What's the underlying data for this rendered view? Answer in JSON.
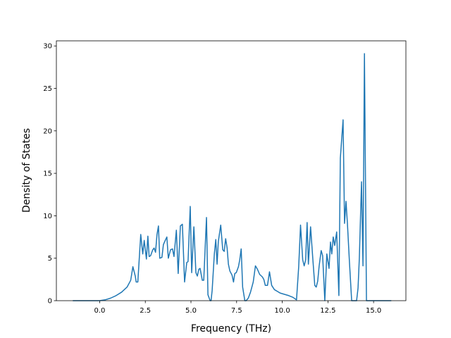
{
  "chart_data": {
    "type": "line",
    "x_label": "Frequency (THz)",
    "y_label": "Density of States",
    "x": [
      -1.47,
      0,
      0.3,
      0.6,
      0.9,
      1.2,
      1.5,
      1.7,
      1.82,
      1.95,
      2.0,
      2.09,
      2.25,
      2.36,
      2.44,
      2.56,
      2.64,
      2.71,
      2.79,
      2.91,
      2.98,
      3.06,
      3.14,
      3.22,
      3.29,
      3.41,
      3.49,
      3.57,
      3.68,
      3.76,
      3.88,
      3.99,
      4.07,
      4.2,
      4.3,
      4.42,
      4.53,
      4.65,
      4.77,
      4.84,
      4.96,
      5.04,
      5.16,
      5.27,
      5.35,
      5.43,
      5.5,
      5.62,
      5.7,
      5.85,
      5.93,
      6.05,
      6.1,
      6.16,
      6.28,
      6.36,
      6.43,
      6.5,
      6.63,
      6.74,
      6.82,
      6.9,
      6.98,
      7.05,
      7.13,
      7.25,
      7.33,
      7.4,
      7.48,
      7.6,
      7.67,
      7.75,
      7.83,
      7.95,
      8.02,
      8.14,
      8.26,
      8.41,
      8.53,
      8.64,
      8.76,
      8.91,
      8.99,
      9.07,
      9.19,
      9.3,
      9.42,
      9.57,
      9.73,
      9.88,
      10.04,
      10.35,
      10.58,
      10.78,
      10.9,
      11.0,
      11.12,
      11.2,
      11.28,
      11.36,
      11.43,
      11.55,
      11.67,
      11.78,
      11.86,
      11.94,
      12.02,
      12.13,
      12.21,
      12.33,
      12.44,
      12.56,
      12.64,
      12.71,
      12.79,
      12.87,
      12.98,
      13.1,
      13.18,
      13.33,
      13.41,
      13.49,
      13.57,
      13.68,
      13.8,
      14.07,
      14.15,
      14.22,
      14.34,
      14.42,
      14.5,
      14.61,
      15.97
    ],
    "series": [
      {
        "color": "#1f77b4",
        "values": [
          0,
          0,
          0.1,
          0.3,
          0.6,
          1.0,
          1.6,
          2.4,
          4.0,
          2.9,
          2.2,
          2.2,
          7.8,
          5.5,
          7.1,
          4.9,
          7.6,
          5.2,
          5.3,
          6.0,
          6.2,
          5.7,
          7.8,
          8.8,
          5.0,
          5.1,
          6.6,
          7.0,
          7.5,
          5.0,
          6.0,
          6.1,
          5.2,
          8.3,
          3.2,
          8.8,
          9.0,
          2.2,
          4.5,
          4.6,
          11.1,
          3.3,
          8.7,
          3.3,
          2.9,
          3.7,
          3.8,
          2.4,
          2.4,
          9.8,
          0.7,
          0,
          0,
          1.2,
          5.5,
          7.2,
          4.3,
          7.0,
          8.9,
          6.0,
          5.8,
          7.3,
          6.2,
          4.3,
          3.5,
          3.0,
          2.2,
          3.2,
          3.3,
          4.0,
          4.8,
          6.1,
          1.6,
          0,
          0,
          0.3,
          1.0,
          2.2,
          4.1,
          3.7,
          3.1,
          2.8,
          2.5,
          1.8,
          1.8,
          3.4,
          1.8,
          1.3,
          1.1,
          0.9,
          0.8,
          0.6,
          0.4,
          0.1,
          4.0,
          8.9,
          4.8,
          4.1,
          4.8,
          9.2,
          4.3,
          8.7,
          5.0,
          1.8,
          1.6,
          2.3,
          4.1,
          5.9,
          5.3,
          0,
          5.5,
          3.8,
          6.9,
          5.5,
          7.5,
          6.5,
          8.1,
          0.6,
          16.8,
          21.3,
          9.1,
          11.7,
          9.0,
          4.5,
          0,
          0,
          1.5,
          5.0,
          14.0,
          4.1,
          29.1,
          0,
          0
        ]
      }
    ],
    "xlim": [
      -2.37,
      16.77
    ],
    "ylim": [
      0,
      30.6
    ],
    "xticks": [
      {
        "value": 0,
        "label": "0.0"
      },
      2.5,
      {
        "value": 5,
        "label": "5.0"
      },
      {
        "value": 7.5,
        "label": "7.5"
      },
      {
        "value": 10,
        "label": "10.0"
      },
      12.5,
      {
        "value": 15,
        "label": "15.0"
      }
    ],
    "yticks": [
      0,
      5,
      10,
      15,
      20,
      25,
      30
    ]
  }
}
